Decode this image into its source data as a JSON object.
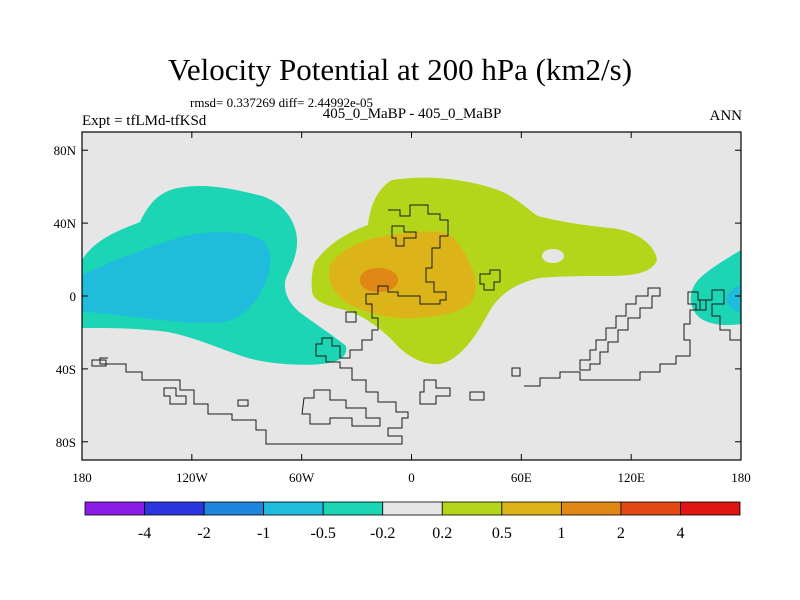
{
  "chart_data": {
    "type": "filled-contour-map",
    "title": "Velocity Potential at 200 hPa (km2/s)",
    "stats": "rmsd= 0.337269 diff= 2.44992e-05",
    "experiment": "Expt = tfLMd-tfKSd",
    "subtitle": "405_0_MaBP - 405_0_MaBP",
    "season": "ANN",
    "x_ticks": [
      "180",
      "120W",
      "60W",
      "0",
      "60E",
      "120E",
      "180"
    ],
    "x_tick_values": [
      -180,
      -120,
      -60,
      0,
      60,
      120,
      180
    ],
    "y_ticks": [
      "80N",
      "40N",
      "0",
      "40S",
      "80S"
    ],
    "y_tick_values": [
      80,
      40,
      0,
      -40,
      -80
    ],
    "xlim": [
      -180,
      180
    ],
    "ylim": [
      -90,
      90
    ],
    "levels": [
      "-4",
      "-2",
      "-1",
      "-0.5",
      "-0.2",
      "0.2",
      "0.5",
      "1",
      "2",
      "4"
    ],
    "level_values": [
      -4,
      -2,
      -1,
      -0.5,
      -0.2,
      0.2,
      0.5,
      1,
      2,
      4
    ],
    "colors": [
      "#8a1ee8",
      "#2a35e0",
      "#1f85dd",
      "#1fbcdc",
      "#1cd5b4",
      "#e6e6e6",
      "#b4d61a",
      "#dcb41a",
      "#e08816",
      "#e04a12",
      "#e01412"
    ]
  }
}
